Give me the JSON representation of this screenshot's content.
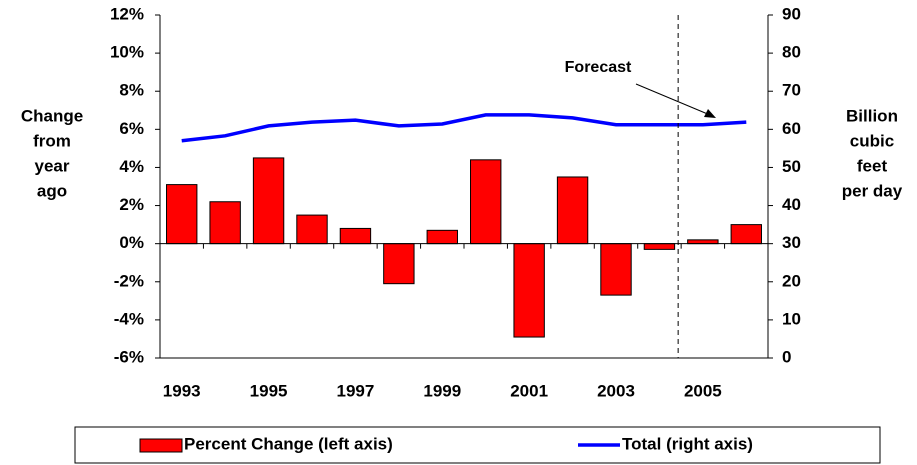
{
  "chart_data": {
    "type": "bar",
    "categories": [
      "1993",
      null,
      "1995",
      null,
      "1997",
      null,
      "1999",
      null,
      "2001",
      null,
      "2003",
      null,
      "2005",
      null
    ],
    "series": [
      {
        "name": "Percent Change (left axis)",
        "type": "bar",
        "color": "#ff0000",
        "values": [
          3.1,
          2.2,
          4.5,
          1.5,
          0.8,
          -2.1,
          0.7,
          4.4,
          -4.9,
          3.5,
          -2.7,
          -0.3,
          0.2,
          1.0
        ]
      },
      {
        "name": "Total (right axis)",
        "type": "line",
        "color": "#0000ff",
        "axis": "y2",
        "values": [
          57.0,
          58.3,
          60.9,
          61.9,
          62.4,
          60.9,
          61.4,
          63.8,
          63.8,
          63.0,
          61.2,
          61.2,
          61.2,
          61.9
        ]
      }
    ],
    "ylim": [
      -6,
      12
    ],
    "yticks": [
      {
        "value": -6,
        "label": "-6%"
      },
      {
        "value": -4,
        "label": "-4%"
      },
      {
        "value": -2,
        "label": "-2%"
      },
      {
        "value": 0,
        "label": "0%"
      },
      {
        "value": 2,
        "label": "2%"
      },
      {
        "value": 4,
        "label": "4%"
      },
      {
        "value": 6,
        "label": "6%"
      },
      {
        "value": 8,
        "label": "8%"
      },
      {
        "value": 10,
        "label": "10%"
      },
      {
        "value": 12,
        "label": "12%"
      }
    ],
    "y2lim": [
      0,
      90
    ],
    "y2ticks": [
      0,
      10,
      20,
      30,
      40,
      50,
      60,
      70,
      80,
      90
    ],
    "y_label": [
      "Change",
      "from",
      "year",
      "ago"
    ],
    "y2_label": [
      "Billion",
      "cubic",
      "feet",
      "per day"
    ],
    "annotation": "Forecast",
    "grid": false
  }
}
